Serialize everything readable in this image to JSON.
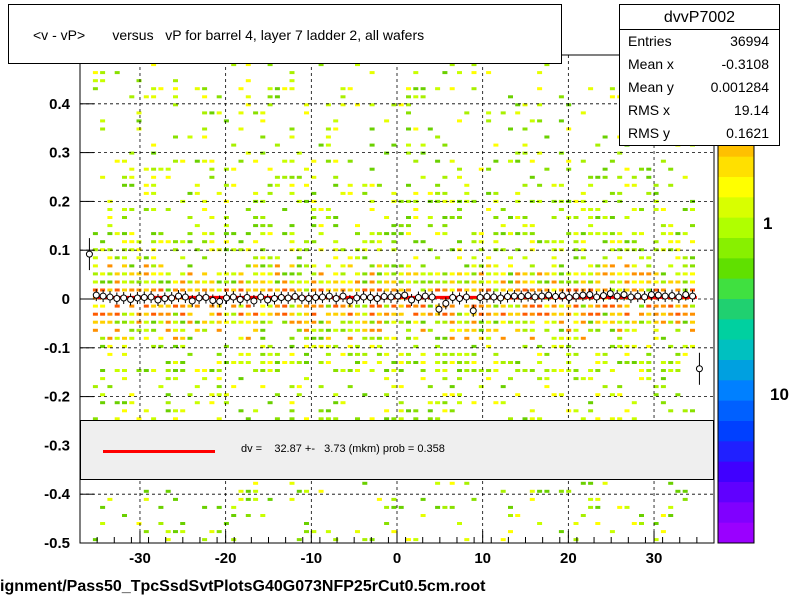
{
  "title": "<v - vP>       versus   vP for barrel 4, layer 7 ladder 2, all wafers",
  "stats": {
    "name": "dvvP7002",
    "rows": [
      {
        "k": "Entries",
        "v": "36994"
      },
      {
        "k": "Mean x",
        "v": "-0.3108"
      },
      {
        "k": "Mean y",
        "v": "0.001284"
      },
      {
        "k": "RMS x",
        "v": "19.14"
      },
      {
        "k": "RMS y",
        "v": "0.1621"
      }
    ]
  },
  "legend": {
    "text": "dv =    32.87 +-   3.73 (mkm) prob = 0.358",
    "line_color": "#ff0000"
  },
  "footer": "ignment/Pass50_TpcSsdSvtPlotsG40G073NFP25rCut0.5cm.root",
  "chart_data": {
    "type": "scatter",
    "xlim": [
      -37,
      37
    ],
    "ylim": [
      -0.5,
      0.5
    ],
    "grid": true,
    "x_ticks": [
      -30,
      -20,
      -10,
      0,
      10,
      20,
      30
    ],
    "y_ticks": [
      -0.5,
      -0.4,
      -0.3,
      -0.2,
      -0.1,
      0,
      0.1,
      0.2,
      0.3,
      0.4,
      0.5
    ],
    "y_tick_labels": [
      "-0.5",
      "-0.4",
      "-0.3",
      "-0.2",
      "-0.1",
      "0",
      "0.1",
      "0.2",
      "0.3",
      "0.4",
      "0.5"
    ],
    "colorbar": {
      "labels": [
        "1",
        "10"
      ]
    },
    "fit": {
      "y": 0.0033,
      "x_range": [
        -35,
        35
      ],
      "color": "#ff0000"
    },
    "profile": {
      "x": [
        -35.9,
        -35.1,
        -34.3,
        -33.5,
        -32.7,
        -31.9,
        -31.1,
        -30.3,
        -29.5,
        -28.7,
        -27.9,
        -27.1,
        -26.3,
        -25.5,
        -24.7,
        -23.9,
        -23.1,
        -22.3,
        -21.5,
        -20.7,
        -19.9,
        -19.1,
        -18.3,
        -17.5,
        -16.7,
        -15.9,
        -15.1,
        -14.3,
        -13.5,
        -12.7,
        -11.9,
        -11.1,
        -10.3,
        -9.5,
        -8.7,
        -7.9,
        -7.1,
        -6.3,
        -5.5,
        -4.7,
        -3.9,
        -3.1,
        -2.3,
        -1.5,
        -0.7,
        0.1,
        0.9,
        1.7,
        2.5,
        3.3,
        4.1,
        4.9,
        5.7,
        6.5,
        7.3,
        8.1,
        8.9,
        9.7,
        10.5,
        11.3,
        12.1,
        12.9,
        13.7,
        14.5,
        15.3,
        16.1,
        16.9,
        17.7,
        18.5,
        19.3,
        20.1,
        20.9,
        21.7,
        22.5,
        23.3,
        24.1,
        24.9,
        25.7,
        26.5,
        27.3,
        28.1,
        28.9,
        29.7,
        30.5,
        31.3,
        32.1,
        32.9,
        33.7,
        34.5,
        35.3
      ],
      "y": [
        0.092,
        0.008,
        0.006,
        0.004,
        0.001,
        0.002,
        -0.001,
        0.002,
        0.003,
        0.004,
        -0.002,
        0.001,
        0.002,
        0.006,
        0.004,
        -0.004,
        0.002,
        0.003,
        -0.003,
        -0.005,
        0.002,
        0.004,
        -0.001,
        0.003,
        -0.004,
        0.004,
        -0.002,
        0.001,
        0.003,
        0.002,
        0.005,
        0.002,
        0.001,
        0.003,
        0.004,
        0.006,
        0.001,
        0.006,
        -0.004,
        0.002,
        0.004,
        0.003,
        0.001,
        0.005,
        0.004,
        0.006,
        0.008,
        -0.002,
        0.003,
        0.006,
        0.004,
        -0.021,
        -0.009,
        0.003,
        0.001,
        0.004,
        -0.024,
        0.003,
        0.005,
        0.004,
        0.002,
        0.005,
        0.006,
        0.005,
        0.007,
        0.004,
        0.006,
        0.008,
        0.005,
        0.007,
        0.003,
        0.006,
        0.008,
        0.009,
        0.004,
        0.007,
        0.011,
        0.006,
        0.009,
        0.004,
        0.006,
        0.004,
        0.009,
        0.008,
        0.006,
        0.007,
        0.004,
        0.009,
        0.006,
        -0.143
      ]
    }
  }
}
